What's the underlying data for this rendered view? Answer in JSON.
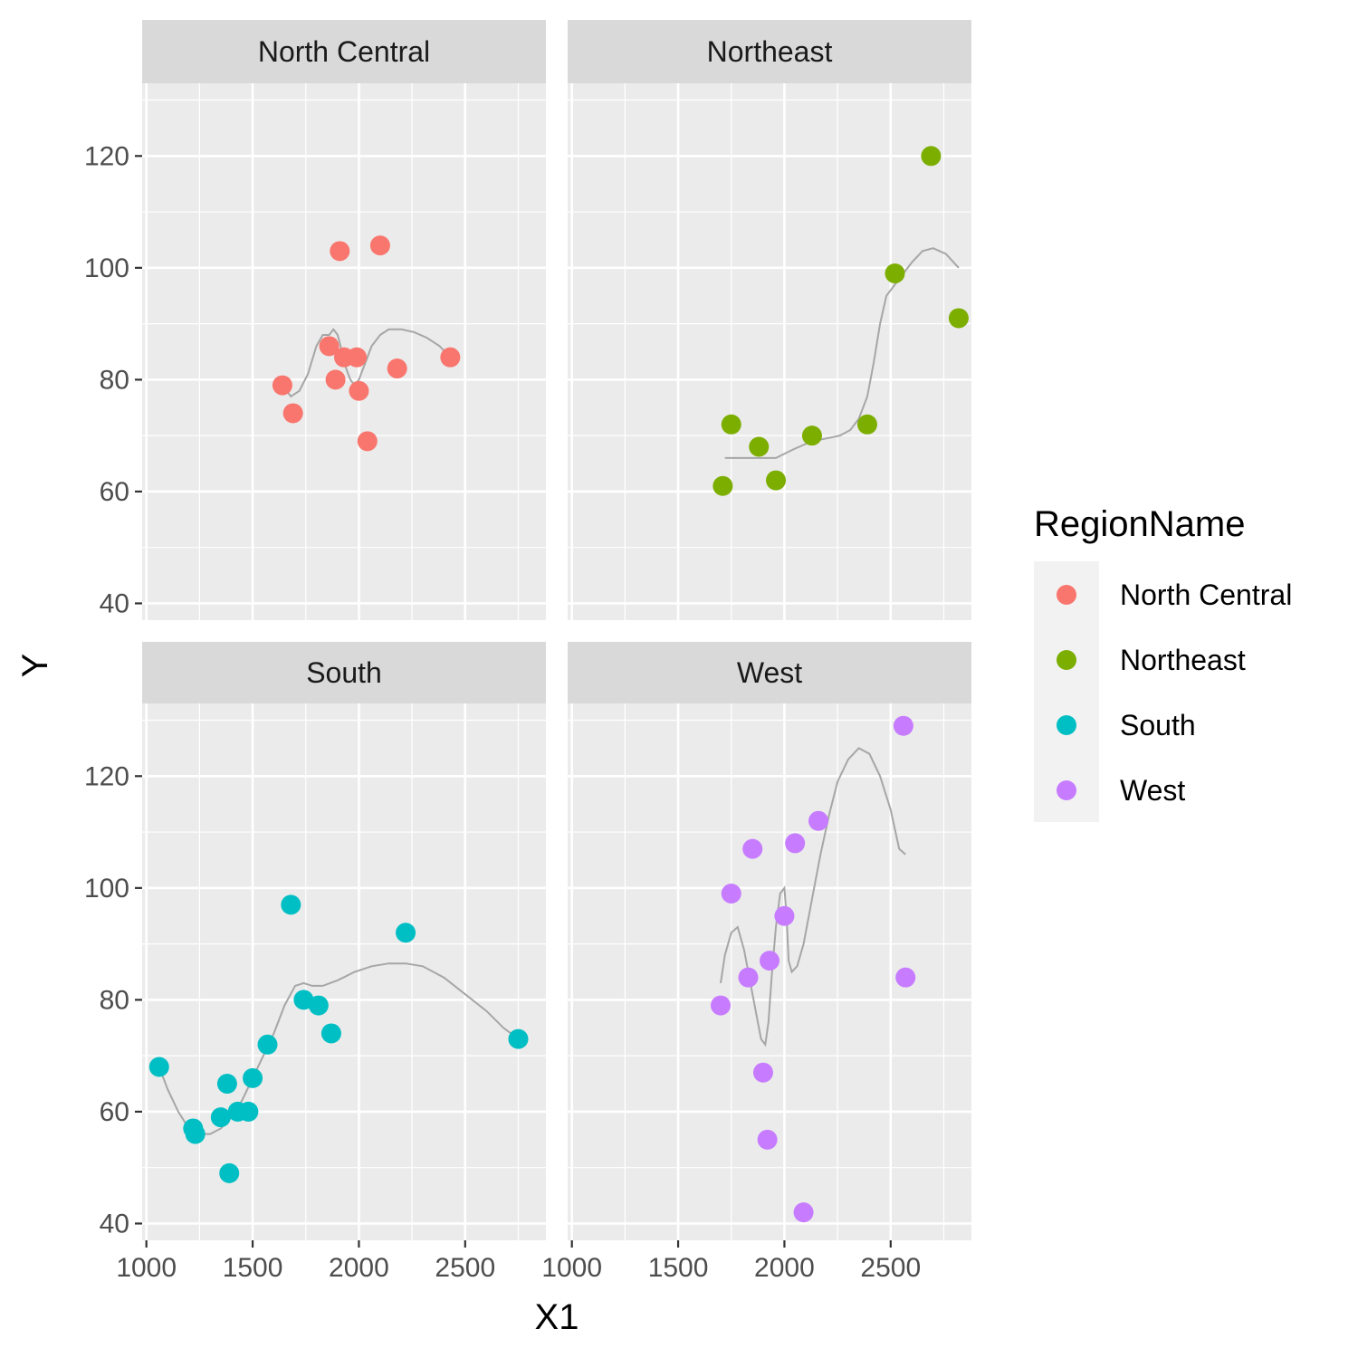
{
  "chart_data": {
    "type": "scatter",
    "subtype": "faceted scatter with smoothed lines",
    "xlabel": "X1",
    "ylabel": "Y",
    "xlim": [
      980,
      2880
    ],
    "ylim": [
      37,
      133
    ],
    "x_ticks": [
      1000,
      1500,
      2000,
      2500
    ],
    "y_ticks": [
      40,
      60,
      80,
      100,
      120
    ],
    "grid": true,
    "facet_layout": "2x2",
    "legend": {
      "title": "RegionName",
      "position": "right",
      "entries": [
        "North Central",
        "Northeast",
        "South",
        "West"
      ]
    },
    "colors": {
      "North Central": "#F8766D",
      "Northeast": "#7CAE00",
      "South": "#00BFC4",
      "West": "#C77CFF",
      "smooth_line": "#a6a6a6",
      "panel_bg": "#ebebeb",
      "strip_bg": "#d9d9d9"
    },
    "series": [
      {
        "name": "North Central",
        "points": [
          [
            1640,
            79
          ],
          [
            1690,
            74
          ],
          [
            1860,
            86
          ],
          [
            1890,
            80
          ],
          [
            1910,
            103
          ],
          [
            1930,
            84
          ],
          [
            1990,
            84
          ],
          [
            2000,
            78
          ],
          [
            2040,
            69
          ],
          [
            2100,
            104
          ],
          [
            2180,
            82
          ],
          [
            2430,
            84
          ]
        ],
        "smooth": [
          [
            1640,
            79
          ],
          [
            1680,
            77
          ],
          [
            1720,
            78
          ],
          [
            1760,
            81
          ],
          [
            1800,
            86
          ],
          [
            1830,
            88
          ],
          [
            1860,
            88
          ],
          [
            1880,
            89
          ],
          [
            1900,
            88
          ],
          [
            1920,
            85
          ],
          [
            1940,
            82
          ],
          [
            1960,
            80
          ],
          [
            1980,
            79
          ],
          [
            2000,
            80
          ],
          [
            2030,
            83
          ],
          [
            2060,
            86
          ],
          [
            2100,
            88
          ],
          [
            2140,
            89
          ],
          [
            2200,
            89
          ],
          [
            2260,
            88.5
          ],
          [
            2320,
            87.5
          ],
          [
            2380,
            86
          ],
          [
            2430,
            84
          ]
        ]
      },
      {
        "name": "Northeast",
        "points": [
          [
            1710,
            61
          ],
          [
            1750,
            72
          ],
          [
            1880,
            68
          ],
          [
            1960,
            62
          ],
          [
            2130,
            70
          ],
          [
            2390,
            72
          ],
          [
            2520,
            99
          ],
          [
            2690,
            120
          ],
          [
            2820,
            91
          ]
        ],
        "smooth": [
          [
            1720,
            66
          ],
          [
            1800,
            66
          ],
          [
            1880,
            66
          ],
          [
            1960,
            66
          ],
          [
            2040,
            67.5
          ],
          [
            2130,
            69
          ],
          [
            2200,
            69.5
          ],
          [
            2260,
            70
          ],
          [
            2310,
            71
          ],
          [
            2350,
            73
          ],
          [
            2390,
            77
          ],
          [
            2420,
            83
          ],
          [
            2450,
            90
          ],
          [
            2480,
            95
          ],
          [
            2520,
            97
          ],
          [
            2560,
            99
          ],
          [
            2600,
            101
          ],
          [
            2650,
            103
          ],
          [
            2700,
            103.5
          ],
          [
            2760,
            102.5
          ],
          [
            2820,
            100
          ]
        ]
      },
      {
        "name": "South",
        "points": [
          [
            1060,
            68
          ],
          [
            1220,
            57
          ],
          [
            1230,
            56
          ],
          [
            1350,
            59
          ],
          [
            1380,
            65
          ],
          [
            1390,
            49
          ],
          [
            1430,
            60
          ],
          [
            1480,
            60
          ],
          [
            1500,
            66
          ],
          [
            1570,
            72
          ],
          [
            1680,
            97
          ],
          [
            1740,
            80
          ],
          [
            1810,
            79
          ],
          [
            1870,
            74
          ],
          [
            2220,
            92
          ],
          [
            2750,
            73
          ]
        ],
        "smooth": [
          [
            1060,
            68
          ],
          [
            1100,
            64
          ],
          [
            1150,
            60
          ],
          [
            1200,
            57
          ],
          [
            1250,
            56
          ],
          [
            1300,
            56
          ],
          [
            1350,
            57
          ],
          [
            1400,
            59
          ],
          [
            1450,
            62
          ],
          [
            1500,
            66
          ],
          [
            1550,
            70
          ],
          [
            1600,
            74
          ],
          [
            1650,
            79
          ],
          [
            1700,
            82.5
          ],
          [
            1740,
            83
          ],
          [
            1780,
            82.5
          ],
          [
            1830,
            82.5
          ],
          [
            1900,
            83.5
          ],
          [
            1980,
            85
          ],
          [
            2060,
            86
          ],
          [
            2140,
            86.5
          ],
          [
            2220,
            86.5
          ],
          [
            2300,
            86
          ],
          [
            2400,
            84
          ],
          [
            2500,
            81
          ],
          [
            2600,
            78
          ],
          [
            2680,
            75
          ],
          [
            2750,
            73
          ]
        ]
      },
      {
        "name": "West",
        "points": [
          [
            1700,
            79
          ],
          [
            1750,
            99
          ],
          [
            1830,
            84
          ],
          [
            1850,
            107
          ],
          [
            1900,
            67
          ],
          [
            1920,
            55
          ],
          [
            1930,
            87
          ],
          [
            2000,
            95
          ],
          [
            2050,
            108
          ],
          [
            2090,
            42
          ],
          [
            2160,
            112
          ],
          [
            2560,
            129
          ],
          [
            2570,
            84
          ]
        ],
        "smooth": [
          [
            1700,
            83
          ],
          [
            1720,
            88
          ],
          [
            1750,
            92
          ],
          [
            1780,
            93
          ],
          [
            1810,
            89
          ],
          [
            1840,
            83
          ],
          [
            1870,
            77
          ],
          [
            1890,
            73
          ],
          [
            1910,
            72
          ],
          [
            1925,
            76
          ],
          [
            1940,
            84
          ],
          [
            1960,
            93
          ],
          [
            1980,
            99
          ],
          [
            2000,
            100
          ],
          [
            2010,
            95
          ],
          [
            2020,
            87
          ],
          [
            2035,
            85
          ],
          [
            2060,
            86
          ],
          [
            2090,
            90
          ],
          [
            2130,
            98
          ],
          [
            2170,
            106
          ],
          [
            2210,
            113
          ],
          [
            2250,
            119
          ],
          [
            2300,
            123
          ],
          [
            2350,
            125
          ],
          [
            2400,
            124
          ],
          [
            2450,
            120
          ],
          [
            2500,
            114
          ],
          [
            2540,
            107
          ],
          [
            2570,
            106
          ]
        ]
      }
    ]
  }
}
